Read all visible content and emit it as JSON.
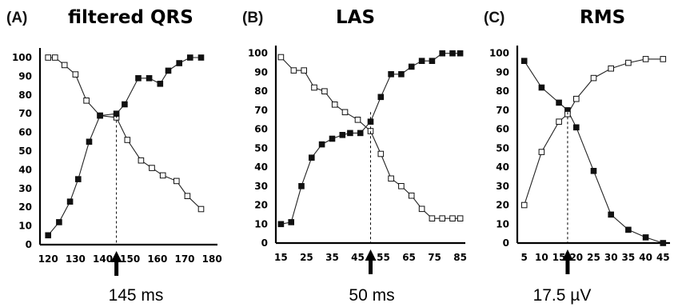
{
  "chart_data": [
    {
      "type": "line",
      "label": "(A)",
      "title": "filtered QRS",
      "x_ticks": [
        "120",
        "130",
        "140",
        "150",
        "160",
        "170",
        "180"
      ],
      "y_ticks": [
        "0",
        "10",
        "20",
        "30",
        "40",
        "50",
        "60",
        "70",
        "80",
        "90",
        "100"
      ],
      "xlim": [
        117,
        182
      ],
      "ylim": [
        0,
        103
      ],
      "marker_x": 145,
      "marker_label": "145 ms",
      "series": [
        {
          "marker": "open-square",
          "x": [
            120,
            122.5,
            126,
            130,
            134,
            139,
            145,
            149,
            154,
            158,
            162,
            167,
            171,
            176
          ],
          "y": [
            100,
            100,
            96,
            91,
            77,
            69,
            68,
            56,
            45,
            41,
            37,
            34,
            26,
            19
          ]
        },
        {
          "marker": "filled-square",
          "x": [
            120,
            124,
            128,
            131,
            135,
            139,
            145,
            148,
            153,
            157,
            161,
            164,
            168,
            172,
            176
          ],
          "y": [
            5,
            12,
            23,
            35,
            55,
            69,
            70,
            75,
            89,
            89,
            86,
            93,
            97,
            100,
            100
          ]
        }
      ]
    },
    {
      "type": "line",
      "label": "(B)",
      "title": "LAS",
      "x_ticks": [
        "15",
        "25",
        "35",
        "45",
        "55",
        "65",
        "75",
        "85"
      ],
      "y_ticks": [
        "0",
        "10",
        "20",
        "30",
        "40",
        "50",
        "60",
        "70",
        "80",
        "90",
        "100"
      ],
      "xlim": [
        13,
        87
      ],
      "ylim": [
        0,
        102
      ],
      "marker_x": 50,
      "marker_label": "50 ms",
      "series": [
        {
          "marker": "open-square",
          "x": [
            15,
            20,
            24,
            28,
            32,
            36,
            40,
            45,
            50,
            54,
            58,
            62,
            66,
            70,
            74,
            78,
            82,
            85
          ],
          "y": [
            98,
            91,
            91,
            82,
            80,
            73,
            69,
            65,
            59,
            47,
            34,
            30,
            25,
            18,
            13,
            13,
            13,
            13
          ]
        },
        {
          "marker": "filled-square",
          "x": [
            15,
            19,
            23,
            27,
            31,
            35,
            39,
            42,
            46,
            50,
            54,
            58,
            62,
            66,
            70,
            74,
            78,
            82,
            85
          ],
          "y": [
            10,
            11,
            30,
            45,
            52,
            55,
            57,
            58,
            58,
            64,
            77,
            89,
            89,
            93,
            96,
            96,
            100,
            100,
            100
          ]
        }
      ]
    },
    {
      "type": "line",
      "label": "(C)",
      "title": "RMS",
      "x_ticks": [
        "5",
        "10",
        "15",
        "20",
        "25",
        "30",
        "35",
        "40",
        "45"
      ],
      "y_ticks": [
        "0",
        "10",
        "20",
        "30",
        "40",
        "50",
        "60",
        "70",
        "80",
        "90",
        "100"
      ],
      "xlim": [
        3,
        47
      ],
      "ylim": [
        0,
        102
      ],
      "marker_x": 17.5,
      "marker_label": "17.5 µV",
      "series": [
        {
          "marker": "filled-square",
          "x": [
            5,
            10,
            15,
            17.5,
            20,
            25,
            30,
            35,
            40,
            45
          ],
          "y": [
            96,
            82,
            74,
            70,
            61,
            38,
            15,
            7,
            3,
            0
          ]
        },
        {
          "marker": "open-square",
          "x": [
            5,
            10,
            15,
            17.5,
            20,
            25,
            30,
            35,
            40,
            45
          ],
          "y": [
            20,
            48,
            64,
            68,
            76,
            87,
            92,
            95,
            97,
            97
          ]
        }
      ]
    }
  ]
}
